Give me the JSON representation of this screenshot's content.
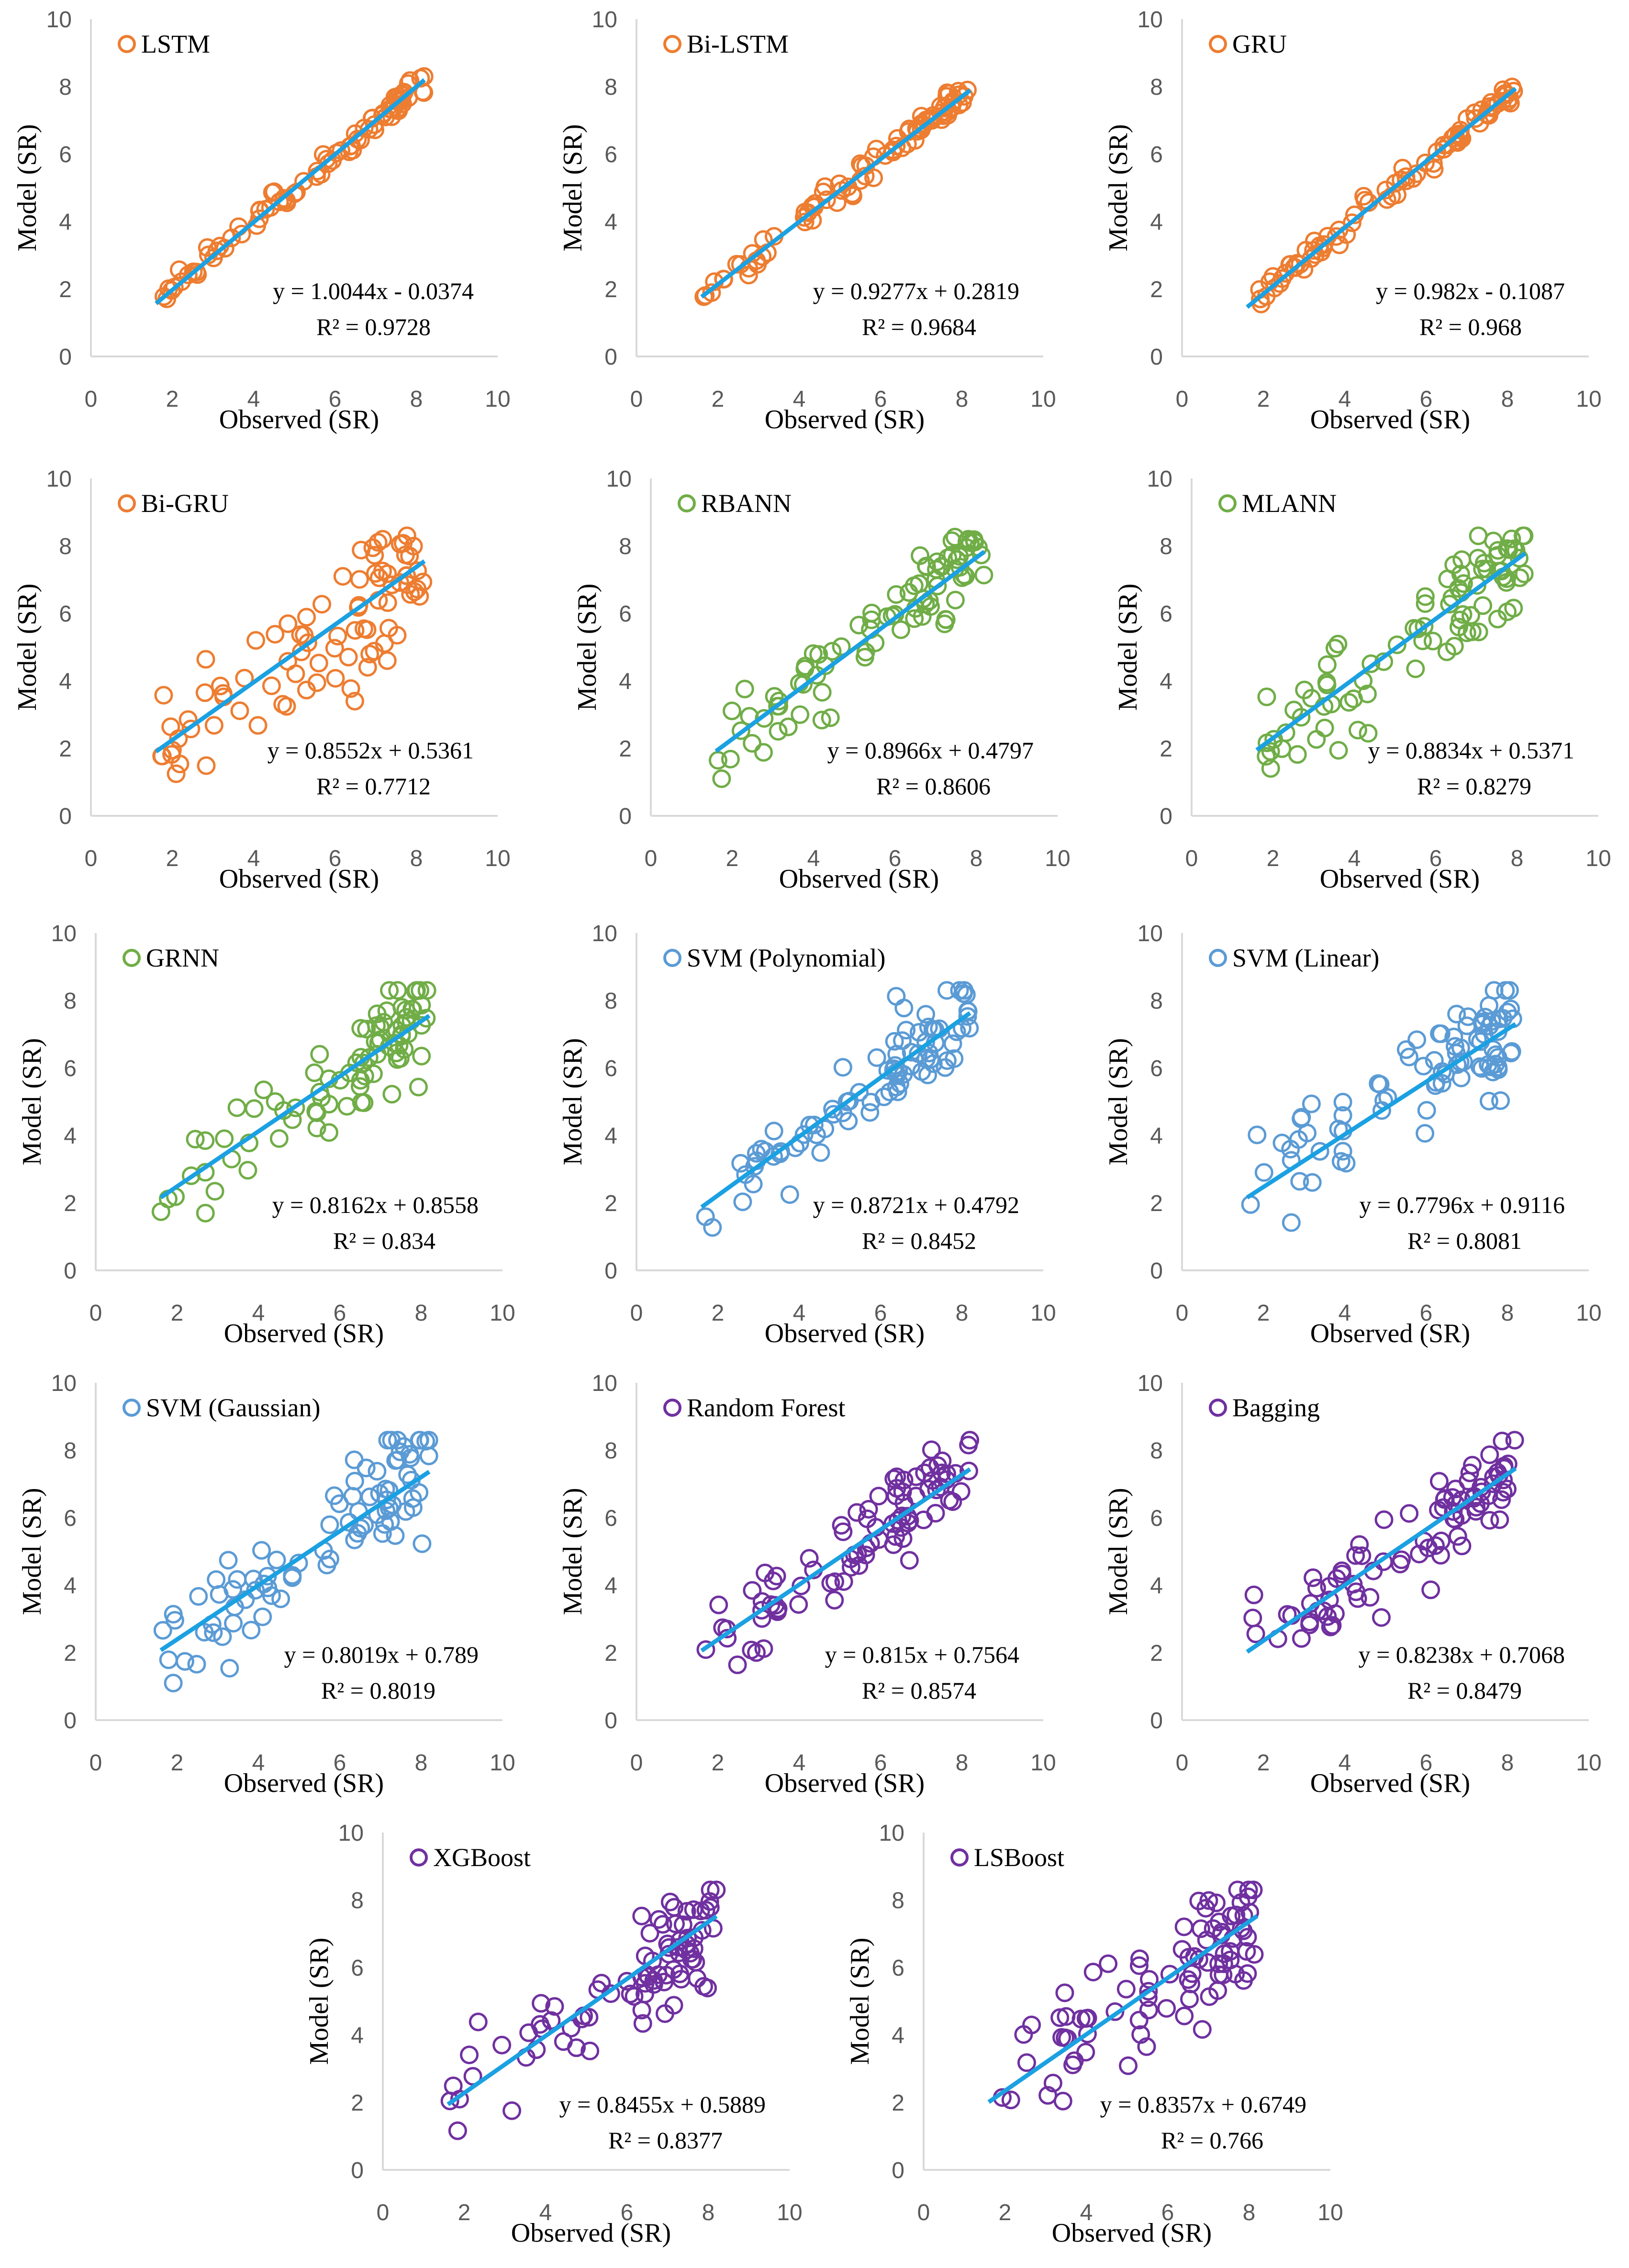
{
  "figure": {
    "axis_labels": {
      "x": "Observed (SR)",
      "y": "Model (SR)"
    },
    "trendline_color": "#1ba1e2"
  },
  "chart_data": [
    {
      "type": "scatter",
      "title": "LSTM",
      "marker_color": "#ed7d31",
      "xlim": [
        0,
        10
      ],
      "ylim": [
        0,
        10
      ],
      "x_ticks": [
        "0",
        "2",
        "4",
        "6",
        "8",
        "10"
      ],
      "y_ticks": [
        "0",
        "2",
        "4",
        "6",
        "8",
        "10"
      ],
      "xlabel": "Observed (SR)",
      "ylabel": "Model (SR)",
      "equation": "y = 1.0044x - 0.0374",
      "r2": "R² = 0.9728",
      "slope": 1.0044,
      "intercept": -0.0374,
      "r2_value": 0.9728,
      "x_range": [
        1.6,
        8.2
      ],
      "seed": 11
    },
    {
      "type": "scatter",
      "title": "Bi-LSTM",
      "marker_color": "#ed7d31",
      "xlim": [
        0,
        10
      ],
      "ylim": [
        0,
        10
      ],
      "x_ticks": [
        "0",
        "2",
        "4",
        "6",
        "8",
        "10"
      ],
      "y_ticks": [
        "0",
        "2",
        "4",
        "6",
        "8",
        "10"
      ],
      "xlabel": "Observed (SR)",
      "ylabel": "Model (SR)",
      "equation": "y = 0.9277x + 0.2819",
      "r2": "R² = 0.9684",
      "slope": 0.9277,
      "intercept": 0.2819,
      "r2_value": 0.9684,
      "x_range": [
        1.6,
        8.2
      ],
      "seed": 23
    },
    {
      "type": "scatter",
      "title": "GRU",
      "marker_color": "#ed7d31",
      "xlim": [
        0,
        10
      ],
      "ylim": [
        0,
        10
      ],
      "x_ticks": [
        "0",
        "2",
        "4",
        "6",
        "8",
        "10"
      ],
      "y_ticks": [
        "0",
        "2",
        "4",
        "6",
        "8",
        "10"
      ],
      "xlabel": "Observed (SR)",
      "ylabel": "Model (SR)",
      "equation": "y = 0.982x - 0.1087",
      "r2": "R² = 0.968",
      "slope": 0.982,
      "intercept": -0.1087,
      "r2_value": 0.968,
      "x_range": [
        1.6,
        8.2
      ],
      "seed": 37
    },
    {
      "type": "scatter",
      "title": "Bi-GRU",
      "marker_color": "#ed7d31",
      "xlim": [
        0,
        10
      ],
      "ylim": [
        0,
        10
      ],
      "x_ticks": [
        "0",
        "2",
        "4",
        "6",
        "8",
        "10"
      ],
      "y_ticks": [
        "0",
        "2",
        "4",
        "6",
        "8",
        "10"
      ],
      "xlabel": "Observed (SR)",
      "ylabel": "Model (SR)",
      "equation": "y = 0.8552x + 0.5361",
      "r2": "R² = 0.7712",
      "slope": 0.8552,
      "intercept": 0.5361,
      "r2_value": 0.7712,
      "x_range": [
        1.6,
        8.2
      ],
      "seed": 41
    },
    {
      "type": "scatter",
      "title": "RBANN",
      "marker_color": "#70ad47",
      "xlim": [
        0,
        10
      ],
      "ylim": [
        0,
        10
      ],
      "x_ticks": [
        "0",
        "2",
        "4",
        "6",
        "8",
        "10"
      ],
      "y_ticks": [
        "0",
        "2",
        "4",
        "6",
        "8",
        "10"
      ],
      "xlabel": "Observed (SR)",
      "ylabel": "Model (SR)",
      "equation": "y = 0.8966x + 0.4797",
      "r2": "R² = 0.8606",
      "slope": 0.8966,
      "intercept": 0.4797,
      "r2_value": 0.8606,
      "x_range": [
        1.6,
        8.2
      ],
      "seed": 53
    },
    {
      "type": "scatter",
      "title": "MLANN",
      "marker_color": "#70ad47",
      "xlim": [
        0,
        10
      ],
      "ylim": [
        0,
        10
      ],
      "x_ticks": [
        "0",
        "2",
        "4",
        "6",
        "8",
        "10"
      ],
      "y_ticks": [
        "0",
        "2",
        "4",
        "6",
        "8",
        "10"
      ],
      "xlabel": "Observed (SR)",
      "ylabel": "Model (SR)",
      "equation": "y = 0.8834x + 0.5371",
      "r2": "R² = 0.8279",
      "slope": 0.8834,
      "intercept": 0.5371,
      "r2_value": 0.8279,
      "x_range": [
        1.6,
        8.2
      ],
      "seed": 67
    },
    {
      "type": "scatter",
      "title": "GRNN",
      "marker_color": "#70ad47",
      "xlim": [
        0,
        10
      ],
      "ylim": [
        0,
        10
      ],
      "x_ticks": [
        "0",
        "2",
        "4",
        "6",
        "8",
        "10"
      ],
      "y_ticks": [
        "0",
        "2",
        "4",
        "6",
        "8",
        "10"
      ],
      "xlabel": "Observed (SR)",
      "ylabel": "Model (SR)",
      "equation": "y = 0.8162x + 0.8558",
      "r2": "R² = 0.834",
      "slope": 0.8162,
      "intercept": 0.8558,
      "r2_value": 0.834,
      "x_range": [
        1.6,
        8.2
      ],
      "seed": 71
    },
    {
      "type": "scatter",
      "title": "SVM (Polynomial)",
      "marker_color": "#5b9bd5",
      "xlim": [
        0,
        10
      ],
      "ylim": [
        0,
        10
      ],
      "x_ticks": [
        "0",
        "2",
        "4",
        "6",
        "8",
        "10"
      ],
      "y_ticks": [
        "0",
        "2",
        "4",
        "6",
        "8",
        "10"
      ],
      "xlabel": "Observed (SR)",
      "ylabel": "Model (SR)",
      "equation": "y = 0.8721x + 0.4792",
      "r2": "R² = 0.8452",
      "slope": 0.8721,
      "intercept": 0.4792,
      "r2_value": 0.8452,
      "x_range": [
        1.6,
        8.2
      ],
      "seed": 83
    },
    {
      "type": "scatter",
      "title": "SVM (Linear)",
      "marker_color": "#5b9bd5",
      "xlim": [
        0,
        10
      ],
      "ylim": [
        0,
        10
      ],
      "x_ticks": [
        "0",
        "2",
        "4",
        "6",
        "8",
        "10"
      ],
      "y_ticks": [
        "0",
        "2",
        "4",
        "6",
        "8",
        "10"
      ],
      "xlabel": "Observed (SR)",
      "ylabel": "Model (SR)",
      "equation": "y = 0.7796x + 0.9116",
      "r2": "R² = 0.8081",
      "slope": 0.7796,
      "intercept": 0.9116,
      "r2_value": 0.8081,
      "x_range": [
        1.6,
        8.2
      ],
      "seed": 97
    },
    {
      "type": "scatter",
      "title": "SVM (Gaussian)",
      "marker_color": "#5b9bd5",
      "xlim": [
        0,
        10
      ],
      "ylim": [
        0,
        10
      ],
      "x_ticks": [
        "0",
        "2",
        "4",
        "6",
        "8",
        "10"
      ],
      "y_ticks": [
        "0",
        "2",
        "4",
        "6",
        "8",
        "10"
      ],
      "xlabel": "Observed (SR)",
      "ylabel": "Model (SR)",
      "equation": "y = 0.8019x + 0.789",
      "r2": "R² = 0.8019",
      "slope": 0.8019,
      "intercept": 0.789,
      "r2_value": 0.8019,
      "x_range": [
        1.6,
        8.2
      ],
      "seed": 101
    },
    {
      "type": "scatter",
      "title": "Random Forest",
      "marker_color": "#7030a0",
      "xlim": [
        0,
        10
      ],
      "ylim": [
        0,
        10
      ],
      "x_ticks": [
        "0",
        "2",
        "4",
        "6",
        "8",
        "10"
      ],
      "y_ticks": [
        "0",
        "2",
        "4",
        "6",
        "8",
        "10"
      ],
      "xlabel": "Observed (SR)",
      "ylabel": "Model (SR)",
      "equation": "y = 0.815x + 0.7564",
      "r2": "R² = 0.8574",
      "slope": 0.815,
      "intercept": 0.7564,
      "r2_value": 0.8574,
      "x_range": [
        1.6,
        8.2
      ],
      "seed": 113
    },
    {
      "type": "scatter",
      "title": "Bagging",
      "marker_color": "#7030a0",
      "xlim": [
        0,
        10
      ],
      "ylim": [
        0,
        10
      ],
      "x_ticks": [
        "0",
        "2",
        "4",
        "6",
        "8",
        "10"
      ],
      "y_ticks": [
        "0",
        "2",
        "4",
        "6",
        "8",
        "10"
      ],
      "xlabel": "Observed (SR)",
      "ylabel": "Model (SR)",
      "equation": "y = 0.8238x + 0.7068",
      "r2": "R² = 0.8479",
      "slope": 0.8238,
      "intercept": 0.7068,
      "r2_value": 0.8479,
      "x_range": [
        1.6,
        8.2
      ],
      "seed": 127
    },
    {
      "type": "scatter",
      "title": "XGBoost",
      "marker_color": "#7030a0",
      "xlim": [
        0,
        10
      ],
      "ylim": [
        0,
        10
      ],
      "x_ticks": [
        "0",
        "2",
        "4",
        "6",
        "8",
        "10"
      ],
      "y_ticks": [
        "0",
        "2",
        "4",
        "6",
        "8",
        "10"
      ],
      "xlabel": "Observed (SR)",
      "ylabel": "Model (SR)",
      "equation": "y = 0.8455x + 0.5889",
      "r2": "R² = 0.8377",
      "slope": 0.8455,
      "intercept": 0.5889,
      "r2_value": 0.8377,
      "x_range": [
        1.6,
        8.2
      ],
      "seed": 131
    },
    {
      "type": "scatter",
      "title": "LSBoost",
      "marker_color": "#7030a0",
      "xlim": [
        0,
        10
      ],
      "ylim": [
        0,
        10
      ],
      "x_ticks": [
        "0",
        "2",
        "4",
        "6",
        "8",
        "10"
      ],
      "y_ticks": [
        "0",
        "2",
        "4",
        "6",
        "8",
        "10"
      ],
      "xlabel": "Observed (SR)",
      "ylabel": "Model (SR)",
      "equation": "y = 0.8357x + 0.6749",
      "r2": "R² = 0.766",
      "slope": 0.8357,
      "intercept": 0.6749,
      "r2_value": 0.766,
      "x_range": [
        1.6,
        8.2
      ],
      "seed": 149
    }
  ]
}
